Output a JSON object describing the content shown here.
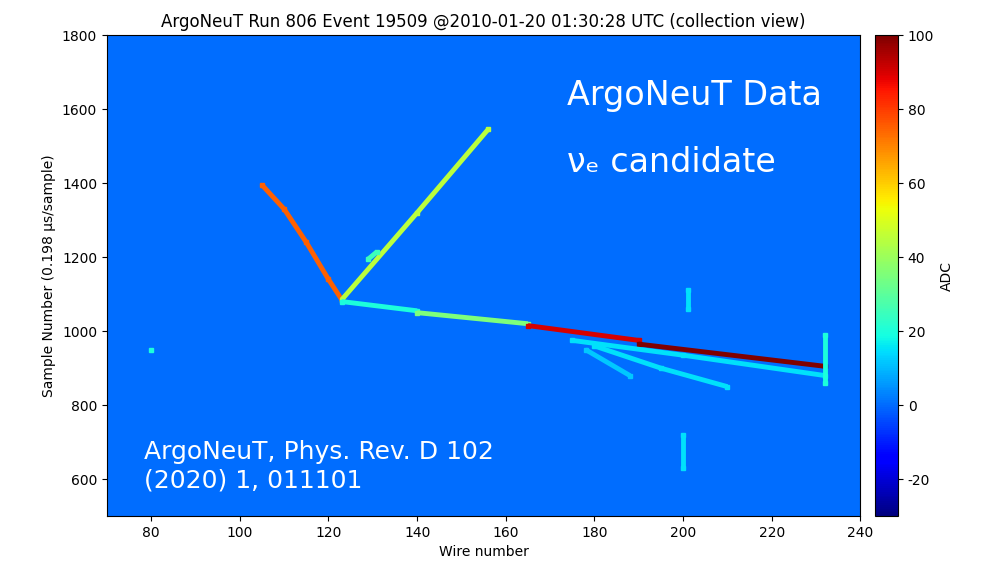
{
  "chart_data": {
    "type": "heatmap",
    "title": "ArgoNeuT Run 806 Event 19509 @2010-01-20 01:30:28 UTC (collection view)",
    "xlabel": "Wire number",
    "ylabel": "Sample Number (0.198 μs/sample)",
    "xlim": [
      70,
      240
    ],
    "ylim": [
      500,
      1800
    ],
    "xticks": [
      80,
      100,
      120,
      140,
      160,
      180,
      200,
      220,
      240
    ],
    "yticks": [
      600,
      800,
      1000,
      1200,
      1400,
      1600,
      1800
    ],
    "background_adc": 0,
    "colorbar": {
      "label": "ADC",
      "range": [
        -30,
        100
      ],
      "ticks": [
        -20,
        0,
        20,
        40,
        60,
        80,
        100
      ]
    },
    "annotations": [
      "ArgoNeuT Data",
      "νₑ candidate",
      "ArgoNeuT, Phys. Rev. D 102\n(2020) 1, 011101"
    ],
    "tracks": [
      {
        "x": [
          105,
          110,
          115,
          120,
          123
        ],
        "y": [
          1395,
          1330,
          1240,
          1140,
          1085
        ],
        "adc": 75
      },
      {
        "x": [
          123,
          140,
          156
        ],
        "y": [
          1085,
          1320,
          1545
        ],
        "adc": 45
      },
      {
        "x": [
          129,
          131
        ],
        "y": [
          1195,
          1215
        ],
        "adc": 25
      },
      {
        "x": [
          123,
          140
        ],
        "y": [
          1080,
          1055
        ],
        "adc": 20
      },
      {
        "x": [
          140,
          165
        ],
        "y": [
          1050,
          1020
        ],
        "adc": 35
      },
      {
        "x": [
          165,
          190
        ],
        "y": [
          1015,
          975
        ],
        "adc": 90
      },
      {
        "x": [
          190,
          232
        ],
        "y": [
          965,
          905
        ],
        "adc": 100
      },
      {
        "x": [
          175,
          200,
          232
        ],
        "y": [
          975,
          935,
          880
        ],
        "adc": 15
      },
      {
        "x": [
          180,
          195,
          210
        ],
        "y": [
          960,
          900,
          850
        ],
        "adc": 15
      },
      {
        "x": [
          178,
          188
        ],
        "y": [
          950,
          880
        ],
        "adc": 12
      },
      {
        "x": [
          200,
          200
        ],
        "y": [
          630,
          720
        ],
        "adc": 15
      },
      {
        "x": [
          201,
          201
        ],
        "y": [
          1060,
          1110
        ],
        "adc": 15
      },
      {
        "x": [
          232,
          232
        ],
        "y": [
          860,
          990
        ],
        "adc": 20
      },
      {
        "x": [
          80
        ],
        "y": [
          950
        ],
        "adc": 20
      }
    ]
  }
}
